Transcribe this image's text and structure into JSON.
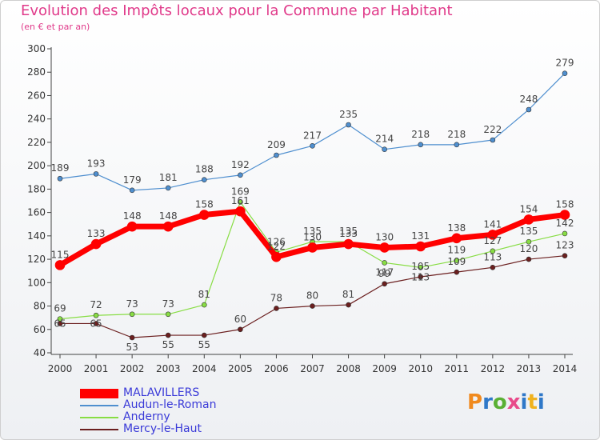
{
  "title": "Evolution des Impôts locaux pour la Commune par Habitant",
  "subtitle": "(en € et par an)",
  "brand": "Proxiti",
  "chart_data": {
    "type": "line",
    "title": "Evolution des Impôts locaux pour la Commune par Habitant",
    "subtitle": "(en € et par an)",
    "x": [
      "2000",
      "2001",
      "2002",
      "2003",
      "2004",
      "2005",
      "2006",
      "2007",
      "2008",
      "2009",
      "2010",
      "2011",
      "2012",
      "2013",
      "2014"
    ],
    "ylim": [
      40,
      300
    ],
    "yticks": [
      40,
      60,
      80,
      100,
      120,
      140,
      160,
      180,
      200,
      220,
      240,
      260,
      280,
      300
    ],
    "grid": false,
    "legend": "bottom-left",
    "series": [
      {
        "name": "MALAVILLERS",
        "color": "#ff0000",
        "values": [
          115,
          133,
          148,
          148,
          158,
          161,
          122,
          130,
          133,
          130,
          131,
          138,
          141,
          154,
          158
        ],
        "labels": [
          "115",
          "133",
          "148",
          "148",
          "158",
          "161",
          "122",
          "130",
          "133",
          "130",
          "131",
          "138",
          "141",
          "154",
          "158"
        ]
      },
      {
        "name": "Audun-le-Roman",
        "color": "#4f8fcf",
        "values": [
          189,
          193,
          179,
          181,
          188,
          192,
          209,
          217,
          235,
          214,
          218,
          218,
          222,
          248,
          279
        ],
        "labels": [
          "189",
          "193",
          "179",
          "181",
          "188",
          "192",
          "209",
          "217",
          "235",
          "214",
          "218",
          "218",
          "222",
          "248",
          "279"
        ]
      },
      {
        "name": "Anderny",
        "color": "#88dd44",
        "values": [
          69,
          72,
          73,
          73,
          81,
          169,
          126,
          135,
          135,
          117,
          113,
          119,
          127,
          135,
          142
        ],
        "labels": [
          "69",
          "72",
          "73",
          "73",
          "81",
          "169",
          "126",
          "135",
          "135",
          "117",
          "113",
          "119",
          "127",
          "135",
          "142"
        ]
      },
      {
        "name": "Mercy-le-Haut",
        "color": "#6b1f1f",
        "values": [
          65,
          65,
          53,
          55,
          55,
          60,
          78,
          80,
          81,
          99,
          105,
          109,
          113,
          120,
          123
        ],
        "labels": [
          "65",
          "65",
          "53",
          "55",
          "55",
          "60",
          "78",
          "80",
          "81",
          "99",
          "105",
          "109",
          "113",
          "120",
          "123"
        ]
      }
    ]
  }
}
